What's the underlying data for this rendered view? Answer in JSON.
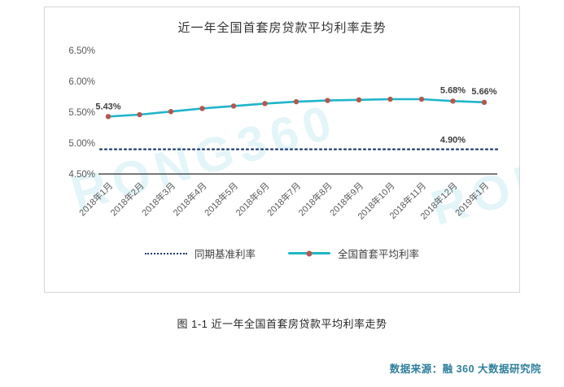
{
  "watermark": "RONG360",
  "caption": "图 1-1 近一年全国首套房贷款平均利率走势",
  "source": "数据来源：融 360 大数据研究院",
  "chart_data": {
    "type": "line",
    "title": "近一年全国首套房贷款平均利率走势",
    "categories": [
      "2018年1月",
      "2018年2月",
      "2018年3月",
      "2018年4月",
      "2018年5月",
      "2018年6月",
      "2018年7月",
      "2018年8月",
      "2018年9月",
      "2018年10月",
      "2018年11月",
      "2018年12月",
      "2019年1月"
    ],
    "series": [
      {
        "name": "同期基准利率",
        "style": "dotted",
        "color": "#1f3b73",
        "values": [
          4.9,
          4.9,
          4.9,
          4.9,
          4.9,
          4.9,
          4.9,
          4.9,
          4.9,
          4.9,
          4.9,
          4.9,
          4.9
        ]
      },
      {
        "name": "全国首套平均利率",
        "style": "line-marker",
        "color": "#1fb5c9",
        "marker_color": "#b4574e",
        "values": [
          5.43,
          5.46,
          5.51,
          5.56,
          5.6,
          5.64,
          5.67,
          5.69,
          5.7,
          5.71,
          5.71,
          5.68,
          5.66
        ]
      }
    ],
    "ylim": [
      4.5,
      6.5
    ],
    "yticks": [
      {
        "value": 4.5,
        "label": "4.50%"
      },
      {
        "value": 5.0,
        "label": "5.00%"
      },
      {
        "value": 5.5,
        "label": "5.50%"
      },
      {
        "value": 6.0,
        "label": "6.00%"
      },
      {
        "value": 6.5,
        "label": "6.50%"
      }
    ],
    "grid": false,
    "legend_position": "bottom",
    "annotations": [
      {
        "text": "5.43%",
        "series": 1,
        "index": 0,
        "dy": -9
      },
      {
        "text": "5.68%",
        "series": 1,
        "index": 11,
        "dy": -10
      },
      {
        "text": "5.66%",
        "series": 1,
        "index": 12,
        "dy": -10
      },
      {
        "text": "4.90%",
        "series": 0,
        "index": 11,
        "dy": -8
      }
    ]
  }
}
